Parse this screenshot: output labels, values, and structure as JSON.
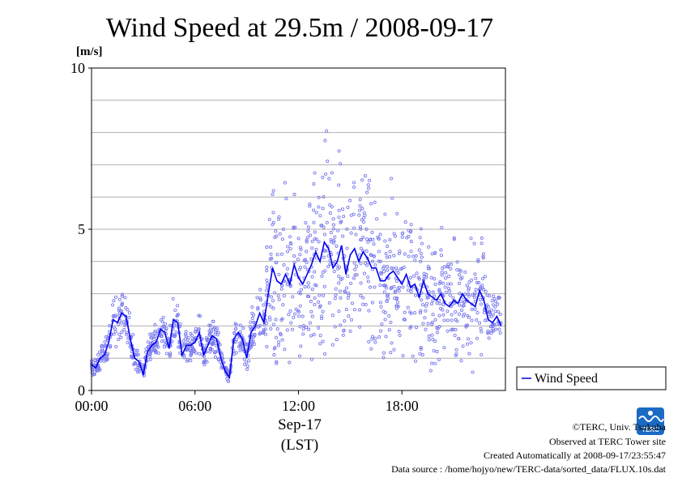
{
  "chart_data": {
    "type": "scatter",
    "title": "Wind Speed at 29.5m / 2008-09-17",
    "yunit": "[m/s]",
    "ylim": [
      0,
      10
    ],
    "yticks": [
      "0",
      "5",
      "10"
    ],
    "xlim_hours": [
      0,
      24
    ],
    "xticks": [
      "00:00",
      "06:00",
      "12:00",
      "18:00"
    ],
    "xlabel_date": "Sep-17",
    "xlabel_tz": "(LST)",
    "grid": true,
    "legend_position": "bottom-right",
    "series": [
      {
        "name": "Wind Speed",
        "style": "line+scatter",
        "line_color": "#0000ee",
        "point_color": "#7a7aee",
        "x_hours": [
          0.0,
          0.25,
          0.5,
          0.75,
          1.0,
          1.25,
          1.5,
          1.75,
          2.0,
          2.25,
          2.5,
          2.75,
          3.0,
          3.25,
          3.5,
          3.75,
          4.0,
          4.25,
          4.5,
          4.75,
          5.0,
          5.25,
          5.5,
          5.75,
          6.0,
          6.25,
          6.5,
          6.75,
          7.0,
          7.25,
          7.5,
          7.75,
          8.0,
          8.25,
          8.5,
          8.75,
          9.0,
          9.25,
          9.5,
          9.75,
          10.0,
          10.25,
          10.5,
          10.75,
          11.0,
          11.25,
          11.5,
          11.75,
          12.0,
          12.25,
          12.5,
          12.75,
          13.0,
          13.25,
          13.5,
          13.75,
          14.0,
          14.25,
          14.5,
          14.75,
          15.0,
          15.25,
          15.5,
          15.75,
          16.0,
          16.25,
          16.5,
          16.75,
          17.0,
          17.25,
          17.5,
          17.75,
          18.0,
          18.25,
          18.5,
          18.75,
          19.0,
          19.25,
          19.5,
          19.75,
          20.0,
          20.25,
          20.5,
          20.75,
          21.0,
          21.25,
          21.5,
          21.75,
          22.0,
          22.25,
          22.5,
          22.75,
          23.0,
          23.25,
          23.5,
          23.75
        ],
        "y": [
          0.8,
          0.7,
          1.0,
          1.1,
          1.5,
          2.2,
          2.1,
          2.4,
          2.3,
          1.6,
          1.0,
          0.9,
          0.5,
          1.2,
          1.4,
          1.5,
          1.9,
          1.8,
          1.3,
          2.2,
          2.1,
          1.1,
          1.4,
          1.4,
          1.5,
          1.8,
          1.1,
          1.4,
          1.7,
          1.6,
          1.0,
          0.6,
          0.4,
          1.6,
          1.8,
          1.6,
          1.0,
          1.8,
          2.0,
          2.4,
          2.1,
          3.0,
          3.8,
          3.4,
          3.3,
          3.6,
          3.3,
          3.9,
          3.5,
          3.3,
          3.6,
          3.9,
          4.3,
          4.0,
          4.6,
          4.4,
          3.8,
          4.0,
          4.5,
          3.6,
          4.2,
          4.4,
          4.0,
          4.3,
          4.1,
          3.8,
          3.8,
          3.4,
          3.4,
          3.6,
          3.7,
          3.5,
          3.3,
          3.6,
          3.2,
          3.3,
          2.9,
          3.4,
          3.0,
          2.9,
          2.8,
          3.0,
          2.7,
          2.6,
          2.8,
          2.7,
          3.0,
          2.8,
          2.7,
          2.6,
          3.1,
          2.8,
          2.2,
          2.1,
          2.3,
          2.0
        ]
      }
    ]
  },
  "footer": {
    "copyright": "©TERC, Univ. Tsukuba",
    "observed": "Observed at TERC Tower site",
    "created": "Created Automatically at 2008-09-17/23:55:47",
    "source": "Data source : /home/hojyo/new/TERC-data/sorted_data/FLUX.10s.dat"
  },
  "logo": {
    "text": "TERC",
    "color": "#1a6bc4"
  }
}
